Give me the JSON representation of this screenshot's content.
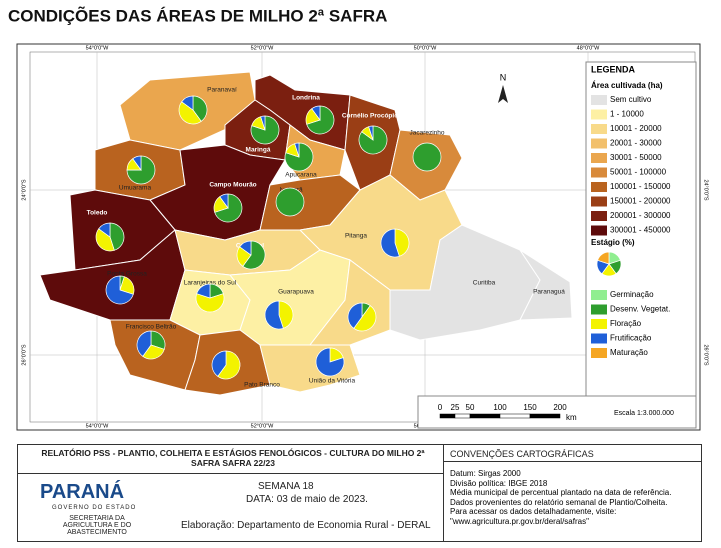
{
  "header": {
    "title": "CONDIÇÕES DAS ÁREAS DE MILHO 2ª SAFRA"
  },
  "map": {
    "grid_lon": [
      "54°0'0\"W",
      "52°0'0\"W",
      "50°0'0\"W",
      "48°0'0\"W"
    ],
    "grid_lat": [
      "24°0'0\"S",
      "26°0'0\"S"
    ],
    "north": "N",
    "legend": {
      "title": "LEGENDA",
      "area_title": "Área cultivada (ha)",
      "classes": [
        "Sem cultivo",
        "1 - 10000",
        "10001 - 20000",
        "20001 - 30000",
        "30001 - 50000",
        "50001 - 100000",
        "100001 - 150000",
        "150001 - 200000",
        "200001 - 300000",
        "300001 - 450000"
      ],
      "class_colors": [
        "#e3e3e3",
        "#fdf0a4",
        "#f8da8a",
        "#f2c06c",
        "#eaa64e",
        "#d88a3b",
        "#b9631f",
        "#9a3e15",
        "#7b1f10",
        "#5e0b0b"
      ],
      "stage_title": "Estágio (%)",
      "stages": [
        "Germinação",
        "Desenv. Vegetat.",
        "Floração",
        "Frutificação",
        "Maturação"
      ],
      "stage_colors": [
        "#90ee90",
        "#2e9e2e",
        "#f3f300",
        "#1f5fd8",
        "#f5a623"
      ],
      "sample_pie": [
        20,
        20,
        20,
        20,
        20
      ]
    },
    "scale": {
      "ticks": [
        "0",
        "25",
        "50",
        "100",
        "150",
        "200"
      ],
      "unit": "km",
      "ratio": "Escala 1:3.000.000"
    },
    "regions": [
      {
        "name": "Paranavaí",
        "area_class": "30001 - 50000",
        "stages": [
          0,
          40,
          45,
          15,
          0
        ]
      },
      {
        "name": "Londrina",
        "area_class": "200001 - 300000",
        "stages": [
          0,
          70,
          20,
          10,
          0
        ]
      },
      {
        "name": "Maringá",
        "area_class": "200001 - 300000",
        "stages": [
          0,
          80,
          15,
          5,
          0
        ]
      },
      {
        "name": "Cornélio Procópio",
        "area_class": "150001 - 200000",
        "stages": [
          0,
          85,
          10,
          5,
          0
        ]
      },
      {
        "name": "Jacarezinho",
        "area_class": "50001 - 100000",
        "stages": [
          0,
          100,
          0,
          0,
          0
        ]
      },
      {
        "name": "Apucarana",
        "area_class": "30001 - 50000",
        "stages": [
          0,
          80,
          15,
          5,
          0
        ]
      },
      {
        "name": "Umuarama",
        "area_class": "100001 - 150000",
        "stages": [
          0,
          75,
          15,
          10,
          0
        ]
      },
      {
        "name": "Campo Mourão",
        "area_class": "300001 - 450000",
        "stages": [
          0,
          70,
          20,
          10,
          0
        ]
      },
      {
        "name": "Ivaiporã",
        "area_class": "100001 - 150000",
        "stages": [
          0,
          100,
          0,
          0,
          0
        ]
      },
      {
        "name": "Toledo",
        "area_class": "300001 - 450000",
        "stages": [
          0,
          45,
          40,
          15,
          0
        ]
      },
      {
        "name": "Cascavel",
        "area_class": "300001 - 450000",
        "stages": [
          0,
          60,
          25,
          15,
          0
        ]
      },
      {
        "name": "Pitanga",
        "area_class": "10001 - 20000",
        "stages": [
          0,
          0,
          45,
          55,
          0
        ]
      },
      {
        "name": "Ponta Grossa",
        "area_class": "10001 - 20000",
        "stages": [
          0,
          5,
          25,
          70,
          0
        ]
      },
      {
        "name": "Laranjeiras do Sul",
        "area_class": "1 - 10000",
        "stages": [
          0,
          20,
          60,
          20,
          0
        ]
      },
      {
        "name": "Guarapuava",
        "area_class": "1 - 10000",
        "stages": [
          0,
          0,
          45,
          55,
          0
        ]
      },
      {
        "name": "Irati",
        "area_class": "10001 - 20000",
        "stages": [
          0,
          10,
          50,
          40,
          0
        ]
      },
      {
        "name": "Francisco Beltrão",
        "area_class": "100001 - 150000",
        "stages": [
          0,
          30,
          30,
          40,
          0
        ]
      },
      {
        "name": "Pato Branco",
        "area_class": "100001 - 150000",
        "stages": [
          0,
          0,
          60,
          40,
          0
        ]
      },
      {
        "name": "União da Vitória",
        "area_class": "10001 - 20000",
        "stages": [
          0,
          0,
          20,
          80,
          0
        ]
      },
      {
        "name": "Curitiba",
        "area_class": "Sem cultivo",
        "stages": null
      },
      {
        "name": "Paranaguá",
        "area_class": "Sem cultivo",
        "stages": null
      }
    ]
  },
  "footer": {
    "report_title": "RELATÓRIO PSS - PLANTIO, COLHEITA E ESTÁGIOS FENOLÓGICOS - CULTURA DO MILHO 2ª SAFRA SAFRA 22/23",
    "logo": "PARANÁ",
    "logo_sub": "GOVERNO DO ESTADO",
    "org": "SECRETARIA DA AGRICULTURA E DO ABASTECIMENTO",
    "week": "SEMANA 18",
    "date": "DATA: 03 de maio de 2023.",
    "credits": "Elaboração: Departamento de Economia Rural - DERAL",
    "conventions_title": "CONVENÇÕES CARTOGRÁFICAS",
    "conventions": [
      "Datum: Sirgas 2000",
      "Divisão política: IBGE 2018",
      "Média municipal de percentual plantado na data de referência.",
      "Dados provenientes do relatório semanal de Plantio/Colheita.",
      "Para acessar os dados detalhadamente, visite:",
      "\"www.agricultura.pr.gov.br/deral/safras\""
    ]
  }
}
